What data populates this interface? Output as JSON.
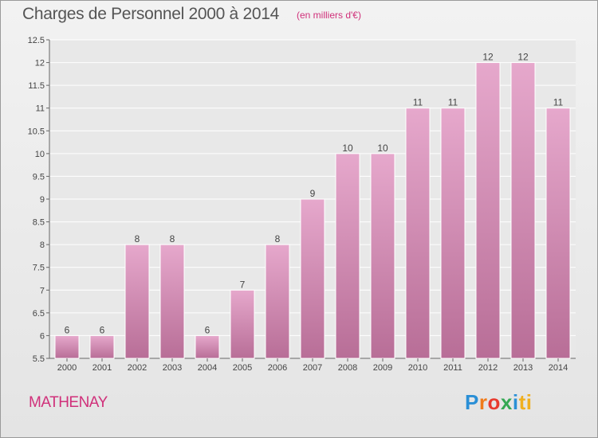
{
  "header": {
    "title": "Charges de Personnel 2000 à 2014",
    "subtitle": "(en milliers d'€)"
  },
  "footer": {
    "place": "MATHENAY",
    "logo_letters": [
      "P",
      "r",
      "o",
      "x",
      "i",
      "ti"
    ]
  },
  "colors": {
    "bar_top": "#e6a8cc",
    "bar_bottom": "#b86e97",
    "accent": "#d0307a"
  },
  "chart_data": {
    "type": "bar",
    "title": "Charges de Personnel 2000 à 2014",
    "subtitle": "(en milliers d'€)",
    "xlabel": "",
    "ylabel": "",
    "categories": [
      "2000",
      "2001",
      "2002",
      "2003",
      "2004",
      "2005",
      "2006",
      "2007",
      "2008",
      "2009",
      "2010",
      "2011",
      "2012",
      "2013",
      "2014"
    ],
    "values": [
      6,
      6,
      8,
      8,
      6,
      7,
      8,
      9,
      10,
      10,
      11,
      11,
      12,
      12,
      11
    ],
    "data_labels": [
      "6",
      "6",
      "8",
      "8",
      "6",
      "7",
      "8",
      "9",
      "10",
      "10",
      "11",
      "11",
      "12",
      "12",
      "11"
    ],
    "y_ticks": [
      "5.5",
      "6",
      "6.5",
      "7",
      "7.5",
      "8",
      "8.5",
      "9",
      "9.5",
      "10",
      "10.5",
      "11",
      "11.5",
      "12",
      "12.5"
    ],
    "ylim": [
      5.5,
      12.5
    ],
    "grid": true,
    "legend": "none"
  }
}
